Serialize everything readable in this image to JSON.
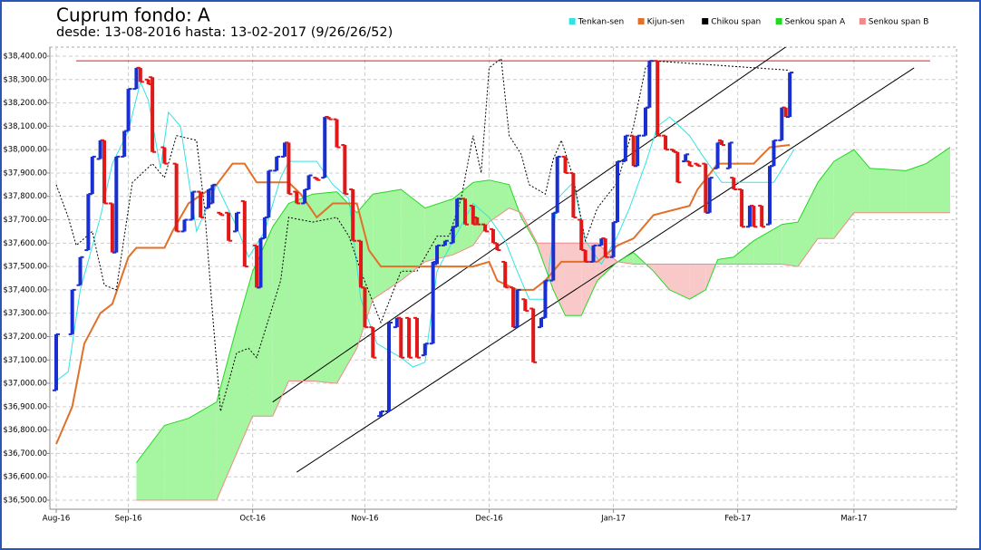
{
  "chart_data": {
    "type": "ichimoku",
    "title": "Cuprum fondo: A",
    "subtitle": "desde: 13-08-2016 hasta: 13-02-2017 (9/26/26/52)",
    "xlim": [
      0,
      223
    ],
    "xticks": [
      {
        "value": 0,
        "label": "Aug-16"
      },
      {
        "value": 18,
        "label": "Sep-16"
      },
      {
        "value": 49,
        "label": "Oct-16"
      },
      {
        "value": 77,
        "label": "Nov-16"
      },
      {
        "value": 108,
        "label": "Dec-16"
      },
      {
        "value": 139,
        "label": "Jan-17"
      },
      {
        "value": 170,
        "label": "Feb-17"
      },
      {
        "value": 199,
        "label": "Mar-17"
      }
    ],
    "ylim": [
      36500,
      38400
    ],
    "yticks": [
      {
        "value": 36500,
        "label": "$36,500.00"
      },
      {
        "value": 36600,
        "label": "$36,600.00"
      },
      {
        "value": 36700,
        "label": "$36,700.00"
      },
      {
        "value": 36800,
        "label": "$36,800.00"
      },
      {
        "value": 36900,
        "label": "$36,900.00"
      },
      {
        "value": 37000,
        "label": "$37,000.00"
      },
      {
        "value": 37100,
        "label": "$37,100.00"
      },
      {
        "value": 37200,
        "label": "$37,200.00"
      },
      {
        "value": 37300,
        "label": "$37,300.00"
      },
      {
        "value": 37400,
        "label": "$37,400.00"
      },
      {
        "value": 37500,
        "label": "$37,500.00"
      },
      {
        "value": 37600,
        "label": "$37,600.00"
      },
      {
        "value": 37700,
        "label": "$37,700.00"
      },
      {
        "value": 37800,
        "label": "$37,800.00"
      },
      {
        "value": 37900,
        "label": "$37,900.00"
      },
      {
        "value": 38000,
        "label": "$38,000.00"
      },
      {
        "value": 38100,
        "label": "$38,100.00"
      },
      {
        "value": 38200,
        "label": "$38,200.00"
      },
      {
        "value": 38300,
        "label": "$38,300.00"
      },
      {
        "value": 38400,
        "label": "$38,400.00"
      }
    ],
    "grid": true,
    "legend": "top-right",
    "candles": {
      "up_color": "#1a2fd0",
      "down_color": "#e01818",
      "x": [
        0,
        4,
        6,
        8,
        9,
        11,
        12,
        14,
        15,
        17,
        18,
        20,
        21,
        23,
        24,
        27,
        30,
        32,
        34,
        36,
        38,
        39,
        41,
        43,
        45,
        47,
        50,
        51,
        52,
        53,
        55,
        57,
        58,
        60,
        62,
        63,
        65,
        67,
        68,
        70,
        72,
        74,
        76,
        77,
        79,
        81,
        83,
        85,
        86,
        88,
        90,
        92,
        94,
        95,
        97,
        99,
        100,
        102,
        104,
        105,
        107,
        109,
        110,
        112,
        114,
        115,
        117,
        119,
        121,
        122,
        124,
        125,
        127,
        129,
        131,
        132,
        134,
        136,
        137,
        139,
        140,
        142,
        144,
        145,
        147,
        148,
        150,
        152,
        154,
        155,
        157,
        158,
        160,
        162,
        163,
        165,
        166,
        168,
        169,
        171,
        173,
        174,
        176,
        178,
        179,
        181,
        182,
        183
      ],
      "open": [
        36970,
        37210,
        37420,
        37570,
        37810,
        37960,
        38040,
        37770,
        37560,
        37970,
        38080,
        38260,
        38350,
        38300,
        38310,
        38010,
        37940,
        37650,
        37700,
        37820,
        37750,
        37770,
        37730,
        37730,
        37650,
        37780,
        37590,
        37410,
        37620,
        37710,
        37910,
        37970,
        38030,
        37820,
        37770,
        37830,
        37880,
        37880,
        38140,
        38130,
        38020,
        37830,
        37610,
        37410,
        37240,
        36860,
        36880,
        37240,
        37280,
        37280,
        37280,
        37120,
        37170,
        37510,
        37590,
        37600,
        37670,
        37790,
        37760,
        37710,
        37680,
        37660,
        37600,
        37520,
        37410,
        37240,
        37360,
        37320,
        37240,
        37280,
        37440,
        37730,
        37970,
        37900,
        37700,
        37570,
        37520,
        37590,
        37620,
        37540,
        37690,
        37950,
        38060,
        37930,
        38060,
        38180,
        38380,
        38060,
        38000,
        37990,
        37950,
        37950,
        37940,
        37940,
        37730,
        37920,
        38040,
        37920,
        37880,
        37830,
        37670,
        37760,
        37760,
        37680,
        37930,
        38040,
        38180,
        38140
      ],
      "close": [
        37210,
        37400,
        37540,
        37810,
        37970,
        38040,
        37770,
        37560,
        37970,
        38080,
        38260,
        38350,
        38290,
        38280,
        37990,
        37940,
        37650,
        37700,
        37820,
        37710,
        37830,
        37850,
        37720,
        37610,
        37730,
        37500,
        37410,
        37620,
        37710,
        37910,
        37970,
        38030,
        37810,
        37770,
        37830,
        37890,
        37870,
        38140,
        38130,
        38010,
        37810,
        37610,
        37410,
        37240,
        37110,
        36880,
        37260,
        37280,
        37110,
        37110,
        37110,
        37170,
        37520,
        37590,
        37610,
        37670,
        37790,
        37680,
        37680,
        37680,
        37650,
        37600,
        37570,
        37410,
        37240,
        37400,
        37310,
        37090,
        37280,
        37440,
        37730,
        37970,
        37900,
        37710,
        37570,
        37520,
        37590,
        37620,
        37540,
        37690,
        37950,
        38060,
        37930,
        38060,
        38180,
        38380,
        38060,
        38000,
        37990,
        37860,
        37980,
        37930,
        37930,
        37730,
        37880,
        38030,
        38020,
        38030,
        37830,
        37670,
        37760,
        37670,
        37670,
        37930,
        38040,
        38180,
        38140,
        38330
      ]
    },
    "cloud": {
      "up_color": "#a6f5a0",
      "down_color": "#f9c9c9"
    },
    "series": [
      {
        "name": "Tenkan-sen",
        "color": "#33e3e3",
        "line_width": 1,
        "x": [
          0,
          3,
          6,
          11,
          14,
          18,
          21,
          23,
          26,
          28,
          31,
          35,
          40,
          45,
          48,
          52,
          56,
          58,
          65,
          69,
          73,
          76,
          80,
          86,
          89,
          92,
          95,
          99,
          104,
          108,
          112,
          115,
          118,
          122,
          125,
          129,
          132,
          136,
          140,
          143,
          147,
          150,
          153,
          158,
          161,
          166,
          170,
          175,
          179,
          184
        ],
        "values": [
          37010,
          37050,
          37400,
          37710,
          37940,
          38080,
          38290,
          38210,
          37920,
          38160,
          38100,
          37650,
          37850,
          37670,
          37540,
          37650,
          37880,
          37950,
          37950,
          37850,
          37790,
          37360,
          37170,
          37110,
          37070,
          37090,
          37480,
          37610,
          37770,
          37710,
          37610,
          37480,
          37360,
          37360,
          37790,
          37860,
          37610,
          37510,
          37630,
          37750,
          37940,
          38100,
          38140,
          38060,
          37980,
          37860,
          37860,
          37860,
          37860,
          38000
        ]
      },
      {
        "name": "Kijun-sen",
        "color": "#e0702a",
        "line_width": 2,
        "x": [
          0,
          4,
          7,
          11,
          14,
          18,
          20,
          27,
          29,
          33,
          40,
          44,
          47,
          50,
          58,
          61,
          65,
          69,
          75,
          78,
          81,
          104,
          108,
          110,
          115,
          119,
          122,
          126,
          135,
          140,
          144,
          149,
          158,
          160,
          165,
          174,
          178,
          183
        ],
        "values": [
          36740,
          36900,
          37170,
          37300,
          37340,
          37540,
          37580,
          37580,
          37650,
          37770,
          37850,
          37940,
          37940,
          37860,
          37860,
          37810,
          37710,
          37770,
          37770,
          37570,
          37500,
          37500,
          37520,
          37440,
          37400,
          37400,
          37440,
          37520,
          37520,
          37590,
          37620,
          37720,
          37760,
          37830,
          37940,
          37940,
          38010,
          38020
        ]
      },
      {
        "name": "Chikou span",
        "color": "#000000",
        "line_width": 1,
        "dashed": true,
        "x": [
          0,
          3,
          5,
          9,
          12,
          15,
          19,
          24,
          27,
          30,
          35,
          37,
          39,
          41,
          45,
          48,
          50,
          52,
          56,
          58,
          64,
          70,
          73,
          76,
          81,
          86,
          90,
          95,
          98,
          101,
          104,
          106,
          108,
          111,
          113,
          116,
          118,
          122,
          124,
          126,
          129,
          132,
          135,
          140,
          144,
          147,
          149,
          183
        ],
        "values": [
          37850,
          37710,
          37590,
          37650,
          37420,
          37400,
          37860,
          37940,
          37880,
          38060,
          38040,
          37750,
          37300,
          36880,
          37130,
          37150,
          37110,
          37220,
          37440,
          37710,
          37690,
          37710,
          37630,
          37480,
          37260,
          37480,
          37480,
          37630,
          37630,
          37790,
          38060,
          37900,
          38350,
          38390,
          38060,
          37980,
          37850,
          37810,
          37960,
          38040,
          37880,
          37610,
          37750,
          37860,
          38100,
          38350,
          38380,
          38340
        ]
      },
      {
        "name": "Senkou span A",
        "color": "#22d822",
        "line_width": 1,
        "x": [
          20,
          27,
          33,
          40,
          45,
          49,
          54,
          58,
          64,
          70,
          75,
          79,
          86,
          92,
          99,
          104,
          108,
          113,
          116,
          120,
          124,
          127,
          131,
          135,
          140,
          144,
          149,
          153,
          158,
          162,
          165,
          169,
          174,
          181,
          185,
          190,
          194,
          199,
          203,
          212,
          217,
          223
        ],
        "values": [
          36660,
          36820,
          36850,
          36920,
          37240,
          37480,
          37670,
          37770,
          37810,
          37820,
          37730,
          37810,
          37830,
          37750,
          37790,
          37860,
          37870,
          37850,
          37710,
          37590,
          37400,
          37290,
          37290,
          37440,
          37520,
          37560,
          37480,
          37400,
          37360,
          37400,
          37530,
          37540,
          37610,
          37680,
          37690,
          37860,
          37950,
          38000,
          37920,
          37910,
          37940,
          38010
        ]
      },
      {
        "name": "Senkou span B",
        "color": "#f08a8a",
        "line_width": 1,
        "x": [
          20,
          27,
          33,
          40,
          45,
          49,
          54,
          58,
          64,
          70,
          75,
          79,
          86,
          92,
          99,
          104,
          108,
          113,
          116,
          120,
          124,
          127,
          131,
          135,
          140,
          144,
          149,
          153,
          158,
          162,
          165,
          169,
          174,
          181,
          185,
          190,
          194,
          199,
          203,
          212,
          217,
          223
        ],
        "values": [
          36500,
          36500,
          36500,
          36500,
          36700,
          36860,
          36860,
          37010,
          37010,
          37000,
          37150,
          37360,
          37440,
          37520,
          37550,
          37590,
          37690,
          37750,
          37730,
          37600,
          37600,
          37600,
          37600,
          37600,
          37520,
          37510,
          37510,
          37510,
          37510,
          37510,
          37510,
          37510,
          37510,
          37510,
          37500,
          37620,
          37620,
          37730,
          37730,
          37730,
          37730,
          37730
        ]
      }
    ],
    "reference_lines": [
      {
        "color": "#d02020",
        "x": [
          5,
          218
        ],
        "values": [
          38380,
          38380
        ]
      },
      {
        "color": "#000000",
        "x": [
          54,
          193
        ],
        "values": [
          36920,
          38570
        ]
      },
      {
        "color": "#000000",
        "x": [
          60,
          214
        ],
        "values": [
          36620,
          38350
        ]
      }
    ]
  }
}
